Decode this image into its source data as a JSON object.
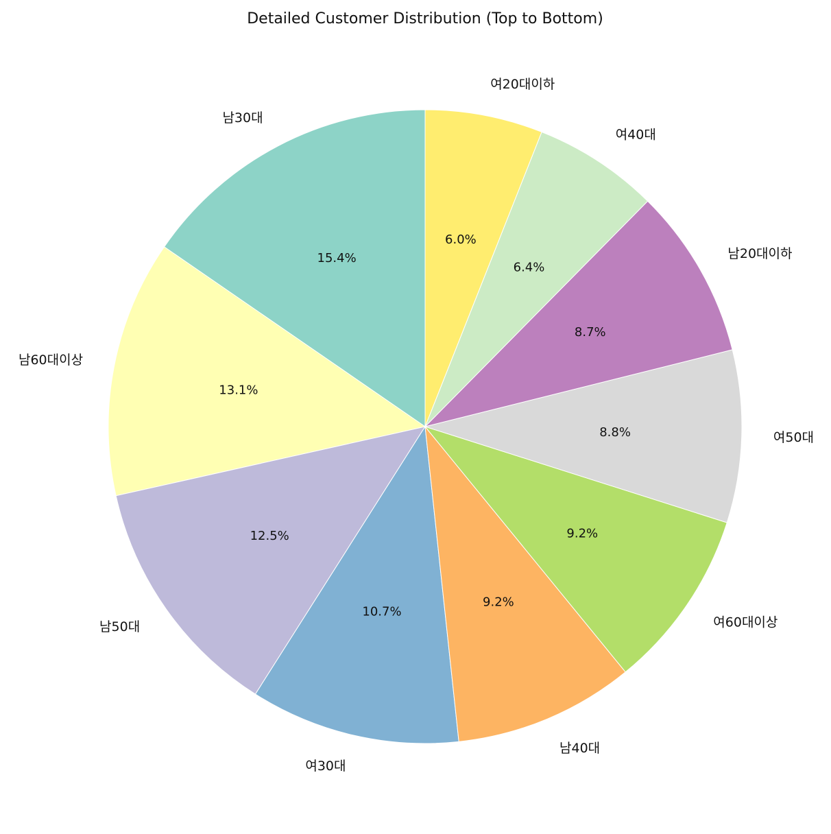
{
  "chart_data": {
    "type": "pie",
    "title": "Detailed Customer Distribution (Top to Bottom)",
    "start_angle_deg": 90,
    "direction": "counterclockwise",
    "slices": [
      {
        "label": "남30대",
        "value": 15.4,
        "pct_label": "15.4%",
        "color": "#8dd3c7"
      },
      {
        "label": "남60대이상",
        "value": 13.1,
        "pct_label": "13.1%",
        "color": "#ffffb3"
      },
      {
        "label": "남50대",
        "value": 12.5,
        "pct_label": "12.5%",
        "color": "#bebada"
      },
      {
        "label": "여30대",
        "value": 10.7,
        "pct_label": "10.7%",
        "color": "#80b1d3"
      },
      {
        "label": "남40대",
        "value": 9.2,
        "pct_label": "9.2%",
        "color": "#fdb462"
      },
      {
        "label": "여60대이상",
        "value": 9.2,
        "pct_label": "9.2%",
        "color": "#b3de69"
      },
      {
        "label": "여50대",
        "value": 8.8,
        "pct_label": "8.8%",
        "color": "#d9d9d9"
      },
      {
        "label": "남20대이하",
        "value": 8.7,
        "pct_label": "8.7%",
        "color": "#bc80bd"
      },
      {
        "label": "여40대",
        "value": 6.4,
        "pct_label": "6.4%",
        "color": "#ccebc5"
      },
      {
        "label": "여20대이하",
        "value": 6.0,
        "pct_label": "6.0%",
        "color": "#ffed6f"
      }
    ]
  }
}
